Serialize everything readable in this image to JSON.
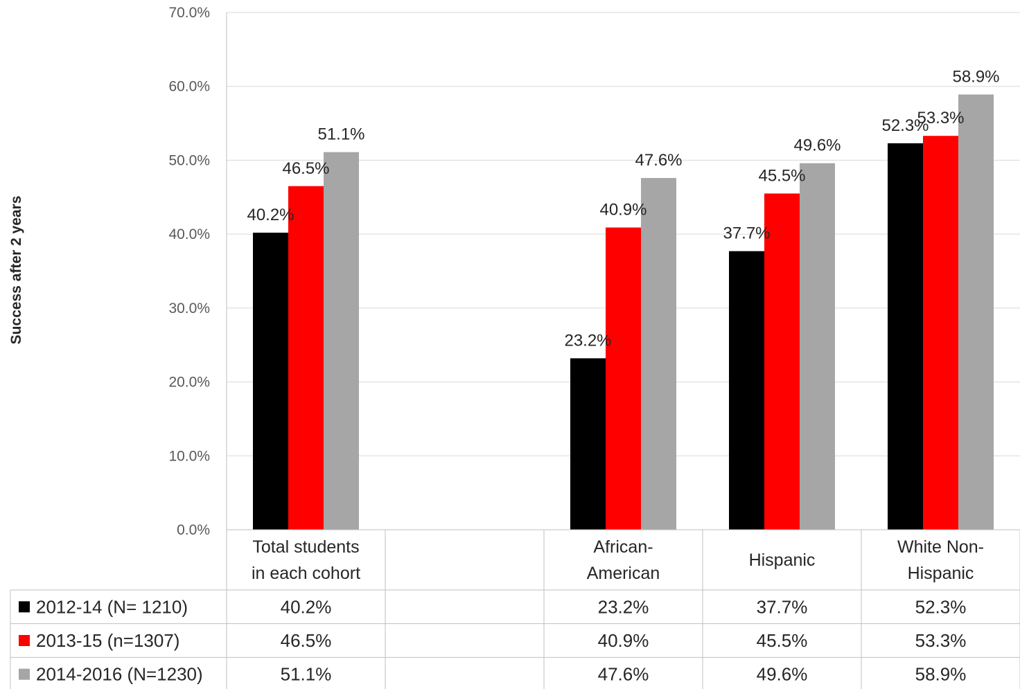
{
  "chart_data": {
    "type": "bar",
    "title": "",
    "ylabel": "Success after 2 years",
    "xlabel": "",
    "ylim": [
      0,
      70
    ],
    "yticks": [
      "0.0%",
      "10.0%",
      "20.0%",
      "30.0%",
      "40.0%",
      "50.0%",
      "60.0%",
      "70.0%"
    ],
    "grid": true,
    "legend": "data-table",
    "categories": [
      [
        "Total students",
        "in each cohort"
      ],
      [],
      [
        "African-",
        "American"
      ],
      [
        "Hispanic"
      ],
      [
        "White Non-",
        "Hispanic"
      ]
    ],
    "series": [
      {
        "name": "2012-14 (N= 1210)",
        "color": "#000000",
        "values": [
          40.2,
          null,
          23.2,
          37.7,
          52.3
        ],
        "labels": [
          "40.2%",
          "",
          "23.2%",
          "37.7%",
          "52.3%"
        ]
      },
      {
        "name": "2013-15 (n=1307)",
        "color": "#ff0000",
        "values": [
          46.5,
          null,
          40.9,
          45.5,
          53.3
        ],
        "labels": [
          "46.5%",
          "",
          "40.9%",
          "45.5%",
          "53.3%"
        ]
      },
      {
        "name": "2014-2016 (N=1230)",
        "color": "#a6a6a6",
        "values": [
          51.1,
          null,
          47.6,
          49.6,
          58.9
        ],
        "labels": [
          "51.1%",
          "",
          "47.6%",
          "49.6%",
          "58.9%"
        ]
      }
    ]
  }
}
